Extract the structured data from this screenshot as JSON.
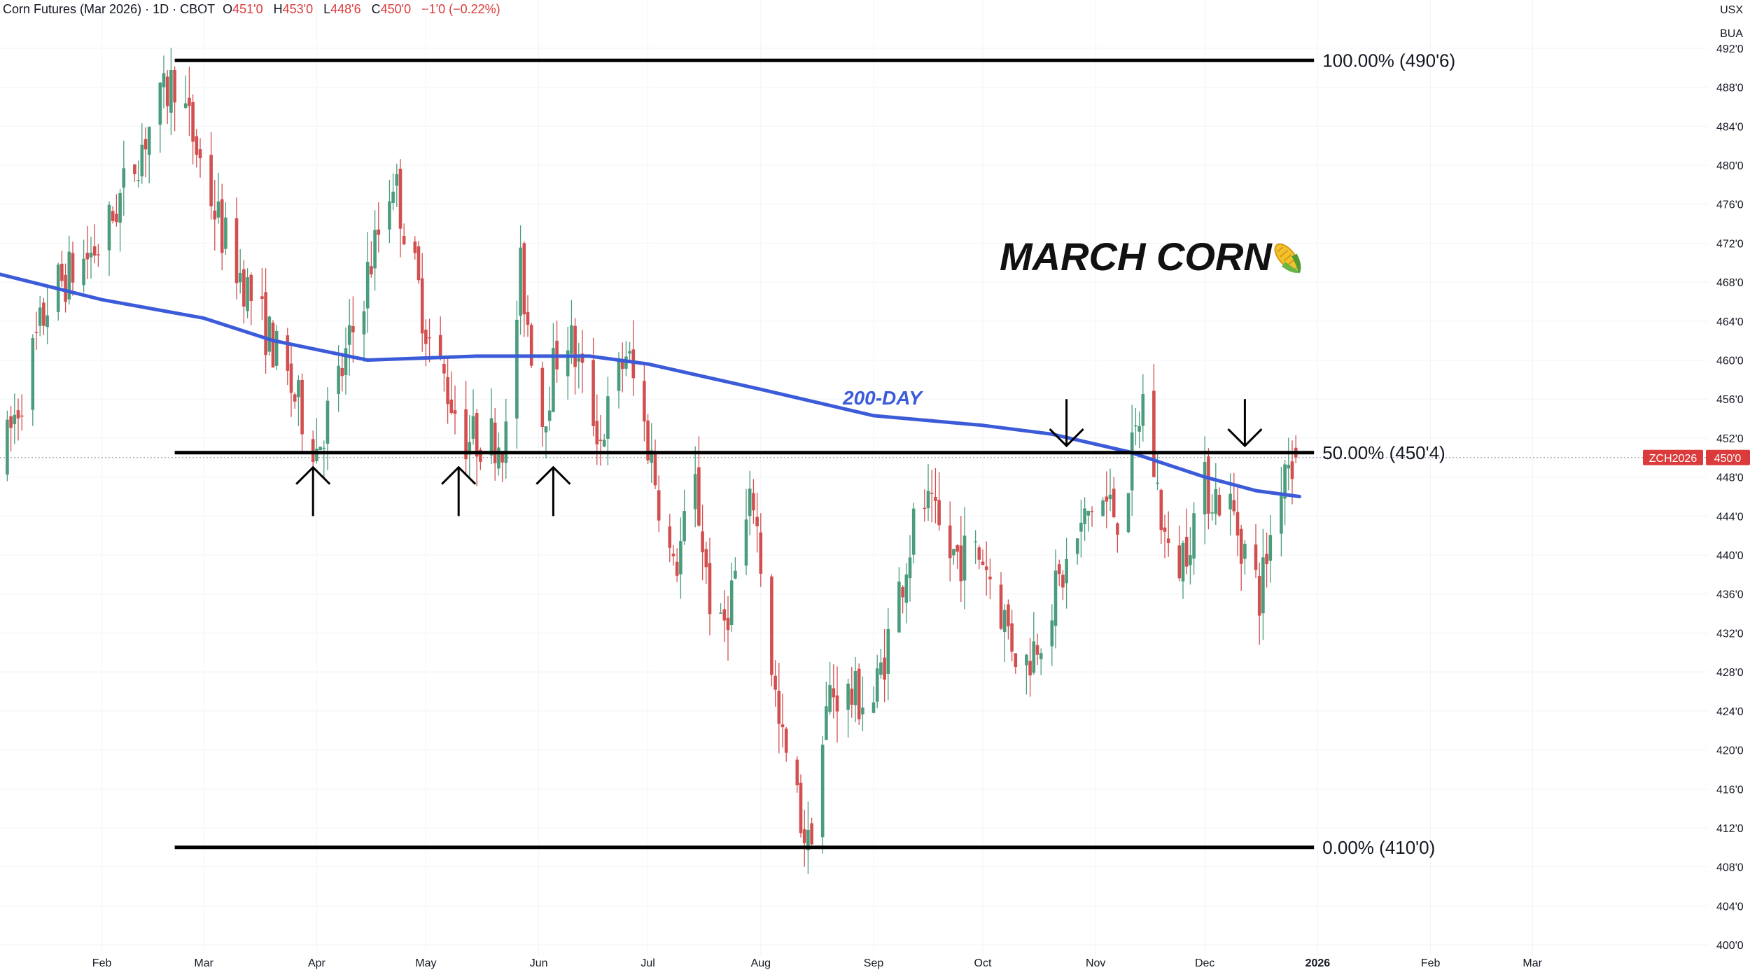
{
  "header": {
    "instrument": "Corn Futures (Mar 2026) · 1D · CBOT",
    "open_label": "O",
    "open": "451'0",
    "high_label": "H",
    "high": "453'0",
    "low_label": "L",
    "low": "448'6",
    "close_label": "C",
    "close": "450'0",
    "change": "−1'0 (−0.22%)"
  },
  "currency": "USX",
  "unit_label": "BUA",
  "title": "MARCH CORN",
  "ma_label": "200-DAY",
  "price_badge": {
    "symbol": "ZCH2026",
    "price": "450'0"
  },
  "colors": {
    "up": "#4a9c7c",
    "down": "#d24f4f",
    "ma": "#3b5bd9",
    "levels": "#000000",
    "badge": "#dc3b3b"
  },
  "chart_data": {
    "type": "candlestick",
    "x_ticks": [
      {
        "date": "2025-02-01",
        "label": "Feb"
      },
      {
        "date": "2025-03-01",
        "label": "Mar"
      },
      {
        "date": "2025-04-01",
        "label": "Apr"
      },
      {
        "date": "2025-05-01",
        "label": "May"
      },
      {
        "date": "2025-06-01",
        "label": "Jun"
      },
      {
        "date": "2025-07-01",
        "label": "Jul"
      },
      {
        "date": "2025-08-01",
        "label": "Aug"
      },
      {
        "date": "2025-09-01",
        "label": "Sep"
      },
      {
        "date": "2025-10-01",
        "label": "Oct"
      },
      {
        "date": "2025-11-01",
        "label": "Nov"
      },
      {
        "date": "2025-12-01",
        "label": "Dec"
      },
      {
        "date": "2026-01-01",
        "label": "2026"
      },
      {
        "date": "2026-02-01",
        "label": "Feb"
      },
      {
        "date": "2026-03-01",
        "label": "Mar"
      }
    ],
    "x_range": [
      "2025-01-04",
      "2026-03-20"
    ],
    "y_ticks": [
      {
        "value": 400,
        "label": "400'0"
      },
      {
        "value": 404,
        "label": "404'0"
      },
      {
        "value": 408,
        "label": "408'0"
      },
      {
        "value": 412,
        "label": "412'0"
      },
      {
        "value": 416,
        "label": "416'0"
      },
      {
        "value": 420,
        "label": "420'0"
      },
      {
        "value": 424,
        "label": "424'0"
      },
      {
        "value": 428,
        "label": "428'0"
      },
      {
        "value": 432,
        "label": "432'0"
      },
      {
        "value": 436,
        "label": "436'0"
      },
      {
        "value": 440,
        "label": "440'0"
      },
      {
        "value": 444,
        "label": "444'0"
      },
      {
        "value": 448,
        "label": "448'0"
      },
      {
        "value": 452,
        "label": "452'0"
      },
      {
        "value": 456,
        "label": "456'0"
      },
      {
        "value": 460,
        "label": "460'0"
      },
      {
        "value": 464,
        "label": "464'0"
      },
      {
        "value": 468,
        "label": "468'0"
      },
      {
        "value": 472,
        "label": "472'0"
      },
      {
        "value": 476,
        "label": "476'0"
      },
      {
        "value": 480,
        "label": "480'0"
      },
      {
        "value": 484,
        "label": "484'0"
      },
      {
        "value": 488,
        "label": "488'0"
      },
      {
        "value": 492,
        "label": "492'0"
      }
    ],
    "y_range": [
      399,
      494
    ],
    "current_price": 450,
    "price_path": [
      [
        "2025-01-04",
        449
      ],
      [
        "2025-01-18",
        467
      ],
      [
        "2025-02-01",
        472
      ],
      [
        "2025-02-14",
        484
      ],
      [
        "2025-02-21",
        489
      ],
      [
        "2025-03-06",
        473
      ],
      [
        "2025-03-17",
        464
      ],
      [
        "2025-04-01",
        451
      ],
      [
        "2025-04-09",
        460
      ],
      [
        "2025-04-22",
        479
      ],
      [
        "2025-05-02",
        462
      ],
      [
        "2025-05-12",
        452
      ],
      [
        "2025-05-23",
        452
      ],
      [
        "2025-05-27",
        469
      ],
      [
        "2025-06-02",
        454
      ],
      [
        "2025-06-08",
        464
      ],
      [
        "2025-06-18",
        452
      ],
      [
        "2025-06-25",
        461
      ],
      [
        "2025-07-02",
        450
      ],
      [
        "2025-07-08",
        438
      ],
      [
        "2025-07-14",
        447
      ],
      [
        "2025-07-20",
        430
      ],
      [
        "2025-07-30",
        446
      ],
      [
        "2025-08-06",
        422
      ],
      [
        "2025-08-14",
        410
      ],
      [
        "2025-08-20",
        426
      ],
      [
        "2025-09-01",
        425
      ],
      [
        "2025-09-14",
        446
      ],
      [
        "2025-09-22",
        440
      ],
      [
        "2025-10-01",
        440
      ],
      [
        "2025-10-12",
        428
      ],
      [
        "2025-10-22",
        437
      ],
      [
        "2025-11-01",
        446
      ],
      [
        "2025-11-08",
        444
      ],
      [
        "2025-11-14",
        456
      ],
      [
        "2025-11-22",
        437
      ],
      [
        "2025-12-01",
        447
      ],
      [
        "2025-12-08",
        445
      ],
      [
        "2025-12-16",
        436
      ],
      [
        "2025-12-23",
        450
      ],
      [
        "2025-12-26",
        450
      ]
    ],
    "series": [
      {
        "name": "200-DAY",
        "type": "line",
        "points": [
          [
            "2025-01-04",
            468.8
          ],
          [
            "2025-02-01",
            466.2
          ],
          [
            "2025-03-01",
            464.3
          ],
          [
            "2025-03-20",
            462
          ],
          [
            "2025-04-15",
            460
          ],
          [
            "2025-05-15",
            460.4
          ],
          [
            "2025-06-15",
            460.4
          ],
          [
            "2025-07-01",
            459.6
          ],
          [
            "2025-08-01",
            457
          ],
          [
            "2025-09-01",
            454.3
          ],
          [
            "2025-10-01",
            453.3
          ],
          [
            "2025-10-20",
            452.4
          ],
          [
            "2025-11-10",
            450.6
          ],
          [
            "2025-12-01",
            448
          ],
          [
            "2025-12-15",
            446.6
          ],
          [
            "2025-12-27",
            446
          ]
        ]
      }
    ],
    "levels": [
      {
        "label": "100.00% (490'6)",
        "value": 490.75,
        "start": "2025-02-21",
        "end": "2025-12-31"
      },
      {
        "label": "50.00% (450'4)",
        "value": 450.5,
        "start": "2025-02-21",
        "end": "2025-12-31"
      },
      {
        "label": "0.00% (410'0)",
        "value": 410.0,
        "start": "2025-02-21",
        "end": "2025-12-31"
      }
    ],
    "annotations": [
      {
        "type": "arrow-up",
        "date": "2025-03-31",
        "from": 444,
        "to": 449
      },
      {
        "type": "arrow-up",
        "date": "2025-05-10",
        "from": 444,
        "to": 449
      },
      {
        "type": "arrow-up",
        "date": "2025-06-05",
        "from": 444,
        "to": 449
      },
      {
        "type": "arrow-down",
        "date": "2025-10-24",
        "from": 456,
        "to": 451.2
      },
      {
        "type": "arrow-down",
        "date": "2025-12-12",
        "from": 456,
        "to": 451.2
      }
    ],
    "title": "MARCH CORN",
    "grid": true
  }
}
